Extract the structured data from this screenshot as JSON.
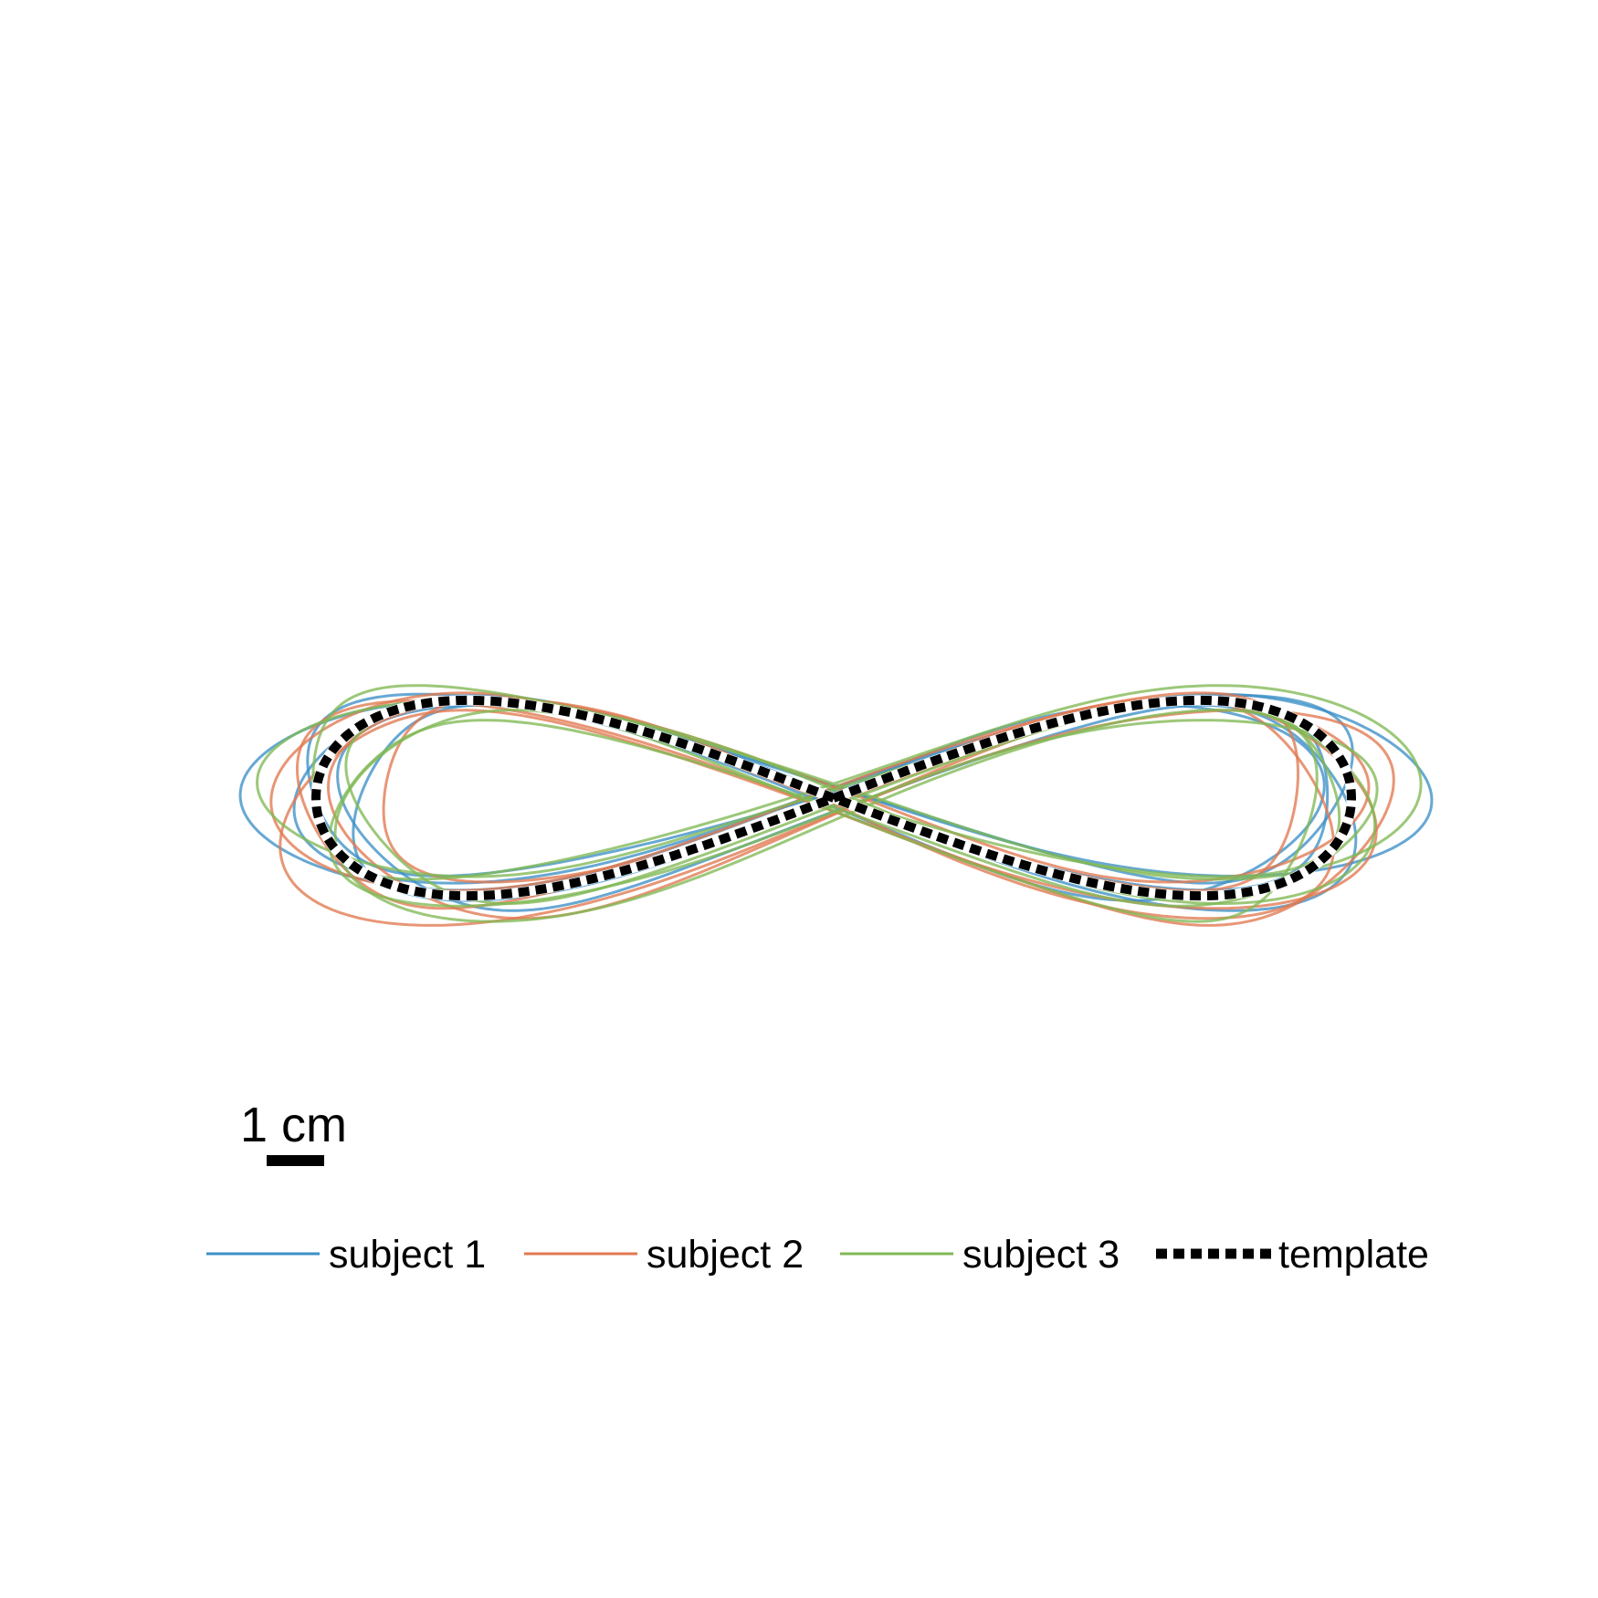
{
  "chart_data": {
    "type": "line",
    "title": "",
    "xlabel": "",
    "ylabel": "",
    "scale_bar": {
      "label": "1 cm",
      "length_cm": 1
    },
    "x_range_cm": [
      -10.2,
      10.2
    ],
    "y_range_cm": [
      -3.7,
      3.7
    ],
    "legend": {
      "placement": "bottom",
      "orientation": "horizontal"
    },
    "template": {
      "name": "template",
      "color": "#000000",
      "style": "dotted",
      "shape": "figure-eight (lemniscate of Gerono)",
      "x_amplitude_cm": 9.0,
      "y_amplitude_cm": 3.4
    },
    "series": [
      {
        "name": "subject 1",
        "color": "#3c8fc7",
        "style": "solid",
        "trials": [
          {
            "sx": 1.05,
            "sy": 0.97,
            "dx": -0.3,
            "dy": 0.05
          },
          {
            "sx": 0.97,
            "sy": 1.05,
            "dx": 0.35,
            "dy": -0.1
          },
          {
            "sx": 1.08,
            "sy": 0.93,
            "dx": 0.15,
            "dy": 0.15
          },
          {
            "sx": 0.93,
            "sy": 1.0,
            "dx": -0.25,
            "dy": -0.05
          },
          {
            "sx": 1.01,
            "sy": 0.96,
            "dx": 0.05,
            "dy": 0.2
          }
        ]
      },
      {
        "name": "subject 2",
        "color": "#e07850",
        "style": "solid",
        "trials": [
          {
            "sx": 1.03,
            "sy": 1.06,
            "dx": -0.2,
            "dy": -0.15
          },
          {
            "sx": 0.95,
            "sy": 0.94,
            "dx": 0.25,
            "dy": 0.1
          },
          {
            "sx": 1.06,
            "sy": 1.1,
            "dx": 0.05,
            "dy": -0.25
          },
          {
            "sx": 0.99,
            "sy": 1.01,
            "dx": -0.35,
            "dy": 0.05
          },
          {
            "sx": 0.96,
            "sy": 1.12,
            "dx": 0.2,
            "dy": -0.2
          }
        ]
      },
      {
        "name": "subject 3",
        "color": "#80b855",
        "style": "solid",
        "trials": [
          {
            "sx": 1.0,
            "sy": 0.95,
            "dx": 0.1,
            "dy": -0.2
          },
          {
            "sx": 0.94,
            "sy": 1.08,
            "dx": 0.2,
            "dy": -0.3
          },
          {
            "sx": 1.04,
            "sy": 0.9,
            "dx": -0.15,
            "dy": 0.1
          },
          {
            "sx": 0.98,
            "sy": 1.03,
            "dx": 0.35,
            "dy": 0.0
          },
          {
            "sx": 1.07,
            "sy": 0.99,
            "dx": 0.0,
            "dy": 0.25
          }
        ]
      }
    ]
  }
}
